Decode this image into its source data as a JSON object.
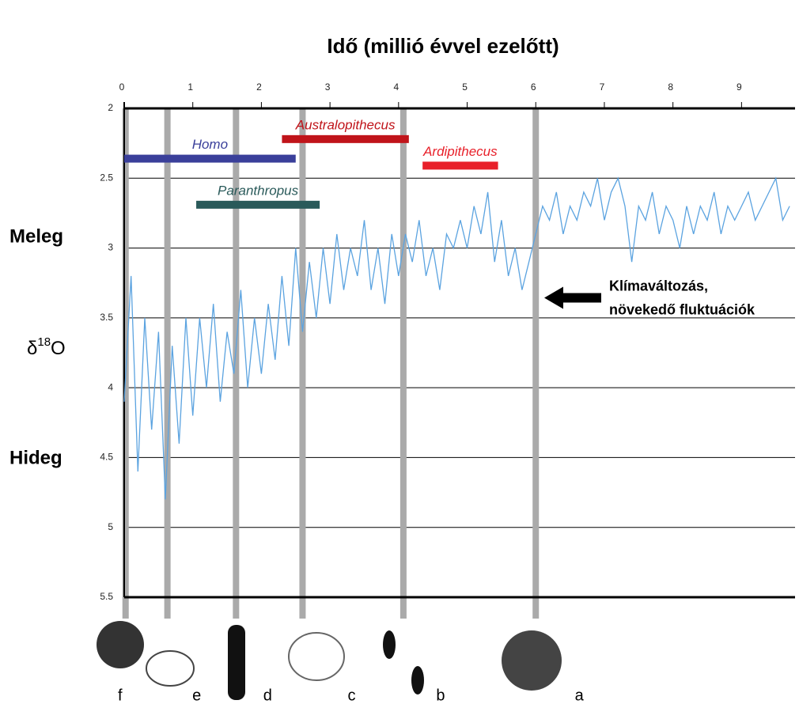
{
  "chart_data": {
    "type": "line",
    "title": "Idő (millió évvel ezelőtt)",
    "warm_label": "Meleg",
    "cold_label": "Hideg",
    "ylabel_parts": [
      "δ",
      "18",
      "O"
    ],
    "annotation_lines": [
      "Klímaváltozás,",
      "növekedő fluktuációk"
    ],
    "annotation_y": 3.3,
    "x": [
      0,
      0.1,
      0.2,
      0.3,
      0.4,
      0.5,
      0.6,
      0.7,
      0.8,
      0.9,
      1,
      1.1,
      1.2,
      1.3,
      1.4,
      1.5,
      1.6,
      1.7,
      1.8,
      1.9,
      2,
      2.1,
      2.2,
      2.3,
      2.4,
      2.5,
      2.6,
      2.7,
      2.8,
      2.9,
      3,
      3.1,
      3.2,
      3.3,
      3.4,
      3.5,
      3.6,
      3.7,
      3.8,
      3.9,
      4,
      4.1,
      4.2,
      4.3,
      4.4,
      4.5,
      4.6,
      4.7,
      4.8,
      4.9,
      5,
      5.1,
      5.2,
      5.3,
      5.4,
      5.5,
      5.6,
      5.7,
      5.8,
      5.9,
      6,
      6.1,
      6.2,
      6.3,
      6.4,
      6.5,
      6.6,
      6.7,
      6.8,
      6.9,
      7,
      7.1,
      7.2,
      7.3,
      7.4,
      7.5,
      7.6,
      7.7,
      7.8,
      7.9,
      8,
      8.1,
      8.2,
      8.3,
      8.4,
      8.5,
      8.6,
      8.7,
      8.8,
      8.9,
      9,
      9.1,
      9.2,
      9.3,
      9.4,
      9.5,
      9.6,
      9.7
    ],
    "values": [
      4.1,
      3.2,
      4.6,
      3.5,
      4.3,
      3.6,
      4.8,
      3.7,
      4.4,
      3.5,
      4.2,
      3.5,
      4.0,
      3.4,
      4.1,
      3.6,
      3.9,
      3.3,
      4.0,
      3.5,
      3.9,
      3.4,
      3.8,
      3.2,
      3.7,
      3.0,
      3.6,
      3.1,
      3.5,
      3.0,
      3.4,
      2.9,
      3.3,
      3.0,
      3.2,
      2.8,
      3.3,
      3.0,
      3.4,
      2.9,
      3.2,
      2.9,
      3.1,
      2.8,
      3.2,
      3.0,
      3.3,
      2.9,
      3.0,
      2.8,
      3.0,
      2.7,
      2.9,
      2.6,
      3.1,
      2.8,
      3.2,
      3.0,
      3.3,
      3.1,
      2.9,
      2.7,
      2.8,
      2.6,
      2.9,
      2.7,
      2.8,
      2.6,
      2.7,
      2.5,
      2.8,
      2.6,
      2.5,
      2.7,
      3.1,
      2.7,
      2.8,
      2.6,
      2.9,
      2.7,
      2.8,
      3.0,
      2.7,
      2.9,
      2.7,
      2.8,
      2.6,
      2.9,
      2.7,
      2.8,
      2.7,
      2.6,
      2.8,
      2.7,
      2.6,
      2.5,
      2.8,
      2.7
    ],
    "color": "#5ba3e0",
    "xlim": [
      0,
      9.78
    ],
    "xticks": [
      0,
      1,
      2,
      3,
      4,
      5,
      6,
      7,
      8,
      9
    ],
    "ylim": [
      2,
      5.5
    ],
    "y_inverted": true,
    "yticks": [
      2,
      2.5,
      3,
      3.5,
      4,
      4.5,
      5,
      5.5
    ],
    "grid": true,
    "ranges": [
      {
        "name": "Homo",
        "start": 0,
        "end": 2.5,
        "level": 2.36,
        "color": "#3a3f9a"
      },
      {
        "name": "Australopithecus",
        "start": 2.3,
        "end": 4.15,
        "level": 2.22,
        "color": "#c0141a"
      },
      {
        "name": "Ardipithecus",
        "start": 4.35,
        "end": 5.45,
        "level": 2.41,
        "color": "#e8202a"
      },
      {
        "name": "Paranthropus",
        "start": 1.05,
        "end": 2.85,
        "level": 2.69,
        "color": "#2a5a5a"
      }
    ],
    "events": [
      {
        "x": 0.02,
        "label": "f"
      },
      {
        "x": 0.63,
        "label": "e"
      },
      {
        "x": 1.63,
        "label": "d"
      },
      {
        "x": 2.6,
        "label": "c"
      },
      {
        "x": 4.07,
        "label": "b"
      },
      {
        "x": 6.0,
        "label": "a"
      }
    ]
  }
}
